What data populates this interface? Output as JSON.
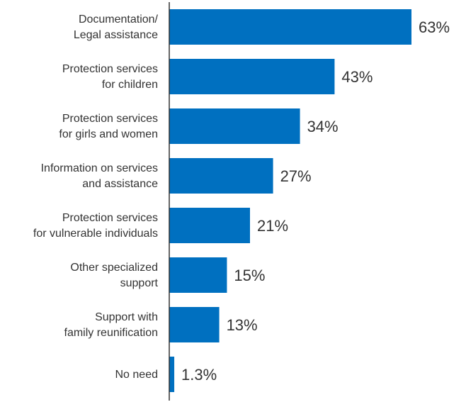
{
  "chart_data": {
    "type": "bar",
    "orientation": "horizontal",
    "categories": [
      [
        "Documentation/",
        "Legal assistance"
      ],
      [
        "Protection services",
        "for children"
      ],
      [
        "Protection services",
        "for girls and women"
      ],
      [
        "Information on services",
        "and assistance"
      ],
      [
        "Protection services",
        "for vulnerable individuals"
      ],
      [
        "Other specialized",
        "support"
      ],
      [
        "Support with",
        "family reunification"
      ],
      [
        "No need"
      ]
    ],
    "values": [
      63,
      43,
      34,
      27,
      21,
      15,
      13,
      1.3
    ],
    "value_labels": [
      "63%",
      "43%",
      "34%",
      "27%",
      "21%",
      "15%",
      "13%",
      "1.3%"
    ],
    "xlim": [
      0,
      63
    ],
    "grid": false,
    "legend": "none",
    "bar_color": "#0070c0",
    "axis_color": "#333333"
  }
}
